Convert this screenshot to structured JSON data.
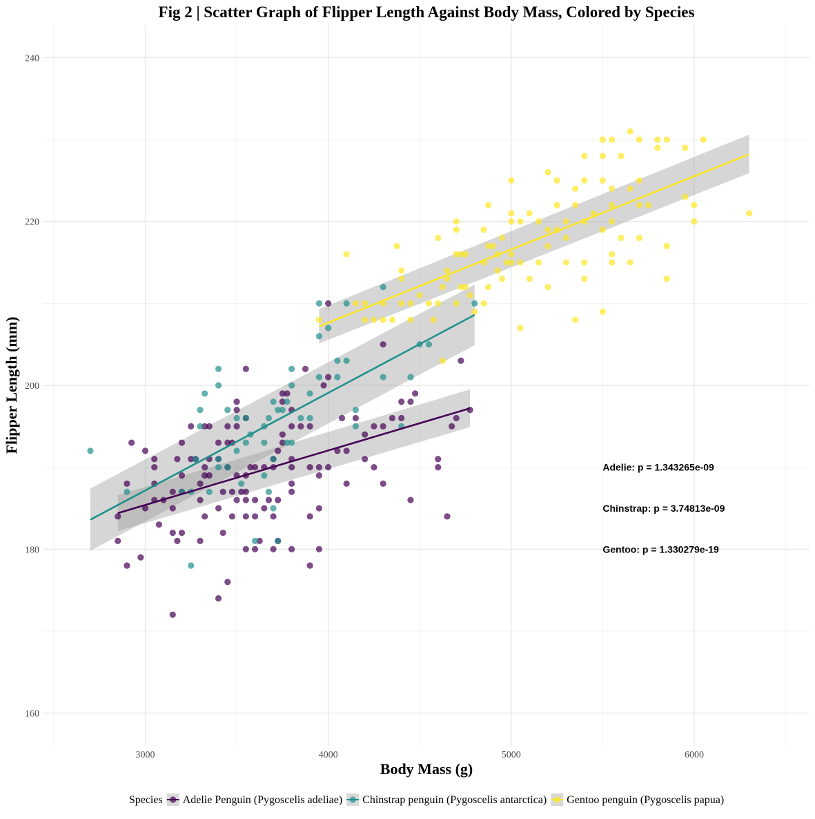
{
  "chart_data": {
    "type": "scatter",
    "title": "Fig 2 | Scatter Graph of Flipper Length Against Body Mass, Colored by Species",
    "xlabel": "Body Mass (g)",
    "ylabel": "Flipper Length (mm)",
    "xlim": [
      2440,
      6630
    ],
    "ylim": [
      156,
      244
    ],
    "x_ticks": [
      3000,
      4000,
      5000,
      6000
    ],
    "y_ticks": [
      160,
      180,
      200,
      220,
      240
    ],
    "grid": true,
    "legend": {
      "title": "Species",
      "position": "bottom"
    },
    "annotations": [
      {
        "text": "Adelie: p = 1.343265e-09",
        "x": 5500,
        "y": 190
      },
      {
        "text": "Chinstrap: p = 3.74813e-09",
        "x": 5500,
        "y": 185
      },
      {
        "text": "Gentoo: p = 1.330279e-19",
        "x": 5500,
        "y": 180
      }
    ],
    "series": [
      {
        "name": "Adelie Penguin (Pygoscelis adeliae)",
        "color": "#440154",
        "fit": {
          "x": [
            2850,
            4775
          ],
          "y": [
            184.4,
            197.2
          ],
          "se_upper": [
            186.6,
            199.5
          ],
          "se_lower": [
            182.2,
            194.9
          ]
        },
        "points": [
          [
            2850,
            181
          ],
          [
            2850,
            184
          ],
          [
            2900,
            178
          ],
          [
            2900,
            188
          ],
          [
            2925,
            193
          ],
          [
            2975,
            179
          ],
          [
            3000,
            185
          ],
          [
            3000,
            192
          ],
          [
            3050,
            186
          ],
          [
            3050,
            188
          ],
          [
            3050,
            190
          ],
          [
            3050,
            191
          ],
          [
            3075,
            183
          ],
          [
            3100,
            186
          ],
          [
            3150,
            172
          ],
          [
            3150,
            182
          ],
          [
            3150,
            185
          ],
          [
            3150,
            187
          ],
          [
            3175,
            181
          ],
          [
            3175,
            191
          ],
          [
            3200,
            182
          ],
          [
            3200,
            187
          ],
          [
            3200,
            189
          ],
          [
            3200,
            193
          ],
          [
            3250,
            191
          ],
          [
            3250,
            195
          ],
          [
            3275,
            191
          ],
          [
            3300,
            181
          ],
          [
            3300,
            186
          ],
          [
            3300,
            188
          ],
          [
            3325,
            184
          ],
          [
            3325,
            189
          ],
          [
            3325,
            190
          ],
          [
            3325,
            195
          ],
          [
            3350,
            189
          ],
          [
            3350,
            191
          ],
          [
            3350,
            195
          ],
          [
            3400,
            174
          ],
          [
            3400,
            185
          ],
          [
            3400,
            191
          ],
          [
            3400,
            193
          ],
          [
            3425,
            182
          ],
          [
            3425,
            187
          ],
          [
            3450,
            176
          ],
          [
            3450,
            190
          ],
          [
            3450,
            193
          ],
          [
            3450,
            195
          ],
          [
            3475,
            184
          ],
          [
            3475,
            187
          ],
          [
            3475,
            193
          ],
          [
            3500,
            186
          ],
          [
            3500,
            189
          ],
          [
            3500,
            195
          ],
          [
            3500,
            197
          ],
          [
            3500,
            198
          ],
          [
            3525,
            187
          ],
          [
            3550,
            180
          ],
          [
            3550,
            184
          ],
          [
            3550,
            186
          ],
          [
            3550,
            187
          ],
          [
            3550,
            189
          ],
          [
            3550,
            196
          ],
          [
            3550,
            202
          ],
          [
            3575,
            190
          ],
          [
            3600,
            180
          ],
          [
            3600,
            184
          ],
          [
            3600,
            186
          ],
          [
            3600,
            190
          ],
          [
            3625,
            181
          ],
          [
            3650,
            185
          ],
          [
            3650,
            190
          ],
          [
            3675,
            186
          ],
          [
            3700,
            180
          ],
          [
            3700,
            184
          ],
          [
            3700,
            190
          ],
          [
            3700,
            191
          ],
          [
            3725,
            181
          ],
          [
            3725,
            186
          ],
          [
            3725,
            192
          ],
          [
            3750,
            193
          ],
          [
            3750,
            194
          ],
          [
            3750,
            198
          ],
          [
            3750,
            199
          ],
          [
            3775,
            199
          ],
          [
            3800,
            180
          ],
          [
            3800,
            187
          ],
          [
            3800,
            188
          ],
          [
            3800,
            190
          ],
          [
            3800,
            191
          ],
          [
            3800,
            195
          ],
          [
            3800,
            197
          ],
          [
            3850,
            195
          ],
          [
            3875,
            202
          ],
          [
            3900,
            178
          ],
          [
            3900,
            184
          ],
          [
            3900,
            190
          ],
          [
            3900,
            195
          ],
          [
            3950,
            180
          ],
          [
            3950,
            185
          ],
          [
            3950,
            189
          ],
          [
            3950,
            190
          ],
          [
            3975,
            200
          ],
          [
            4000,
            190
          ],
          [
            4000,
            201
          ],
          [
            4000,
            210
          ],
          [
            4050,
            192
          ],
          [
            4075,
            196
          ],
          [
            4100,
            188
          ],
          [
            4100,
            192
          ],
          [
            4150,
            196
          ],
          [
            4200,
            191
          ],
          [
            4200,
            194
          ],
          [
            4250,
            190
          ],
          [
            4250,
            195
          ],
          [
            4300,
            188
          ],
          [
            4300,
            195
          ],
          [
            4300,
            205
          ],
          [
            4350,
            196
          ],
          [
            4400,
            196
          ],
          [
            4400,
            198
          ],
          [
            4450,
            186
          ],
          [
            4450,
            198
          ],
          [
            4475,
            199
          ],
          [
            4600,
            190
          ],
          [
            4600,
            191
          ],
          [
            4650,
            184
          ],
          [
            4675,
            195
          ],
          [
            4700,
            196
          ],
          [
            4725,
            203
          ],
          [
            4775,
            197
          ]
        ]
      },
      {
        "name": "Chinstrap penguin (Pygoscelis antarctica)",
        "color": "#21908C",
        "fit": {
          "x": [
            2700,
            4800
          ],
          "y": [
            183.6,
            208.6
          ],
          "se_upper": [
            187.4,
            212.3
          ],
          "se_lower": [
            179.8,
            204.9
          ]
        },
        "points": [
          [
            2700,
            192
          ],
          [
            2900,
            187
          ],
          [
            3200,
            187
          ],
          [
            3250,
            178
          ],
          [
            3250,
            187
          ],
          [
            3275,
            191
          ],
          [
            3300,
            195
          ],
          [
            3300,
            197
          ],
          [
            3325,
            199
          ],
          [
            3350,
            187
          ],
          [
            3400,
            190
          ],
          [
            3400,
            191
          ],
          [
            3400,
            200
          ],
          [
            3400,
            202
          ],
          [
            3450,
            190
          ],
          [
            3450,
            197
          ],
          [
            3500,
            192
          ],
          [
            3500,
            196
          ],
          [
            3525,
            188
          ],
          [
            3550,
            193
          ],
          [
            3550,
            196
          ],
          [
            3575,
            194
          ],
          [
            3600,
            181
          ],
          [
            3650,
            189
          ],
          [
            3650,
            193
          ],
          [
            3650,
            195
          ],
          [
            3675,
            187
          ],
          [
            3675,
            196
          ],
          [
            3700,
            185
          ],
          [
            3700,
            191
          ],
          [
            3700,
            198
          ],
          [
            3725,
            181
          ],
          [
            3725,
            197
          ],
          [
            3750,
            197
          ],
          [
            3775,
            193
          ],
          [
            3775,
            198
          ],
          [
            3800,
            193
          ],
          [
            3800,
            200
          ],
          [
            3800,
            202
          ],
          [
            3850,
            196
          ],
          [
            3900,
            196
          ],
          [
            3900,
            199
          ],
          [
            3950,
            201
          ],
          [
            3950,
            206
          ],
          [
            3950,
            210
          ],
          [
            4000,
            207
          ],
          [
            4050,
            201
          ],
          [
            4050,
            203
          ],
          [
            4100,
            203
          ],
          [
            4100,
            210
          ],
          [
            4150,
            195
          ],
          [
            4150,
            197
          ],
          [
            4300,
            201
          ],
          [
            4300,
            212
          ],
          [
            4400,
            195
          ],
          [
            4450,
            201
          ],
          [
            4500,
            205
          ],
          [
            4550,
            205
          ],
          [
            4800,
            210
          ]
        ]
      },
      {
        "name": "Gentoo penguin (Pygoscelis papua)",
        "color": "#FDE725",
        "fit": {
          "x": [
            3950,
            6300
          ],
          "y": [
            207.2,
            228.2
          ],
          "se_upper": [
            209.3,
            230.6
          ],
          "se_lower": [
            205.1,
            225.9
          ]
        },
        "points": [
          [
            3950,
            208
          ],
          [
            4100,
            216
          ],
          [
            4150,
            210
          ],
          [
            4200,
            208
          ],
          [
            4200,
            210
          ],
          [
            4250,
            208
          ],
          [
            4300,
            208
          ],
          [
            4300,
            210
          ],
          [
            4350,
            208
          ],
          [
            4375,
            217
          ],
          [
            4400,
            210
          ],
          [
            4400,
            213
          ],
          [
            4400,
            214
          ],
          [
            4450,
            208
          ],
          [
            4450,
            210
          ],
          [
            4500,
            211
          ],
          [
            4550,
            210
          ],
          [
            4575,
            208
          ],
          [
            4600,
            210
          ],
          [
            4600,
            218
          ],
          [
            4625,
            203
          ],
          [
            4625,
            212
          ],
          [
            4650,
            213
          ],
          [
            4650,
            214
          ],
          [
            4700,
            216
          ],
          [
            4700,
            219
          ],
          [
            4700,
            220
          ],
          [
            4700,
            210
          ],
          [
            4725,
            216
          ],
          [
            4725,
            212
          ],
          [
            4750,
            212
          ],
          [
            4750,
            216
          ],
          [
            4775,
            211
          ],
          [
            4800,
            209
          ],
          [
            4850,
            210
          ],
          [
            4850,
            215
          ],
          [
            4850,
            219
          ],
          [
            4875,
            212
          ],
          [
            4875,
            217
          ],
          [
            4875,
            222
          ],
          [
            4900,
            217
          ],
          [
            4925,
            214
          ],
          [
            4925,
            216
          ],
          [
            4950,
            213
          ],
          [
            4950,
            218
          ],
          [
            4975,
            215
          ],
          [
            5000,
            215
          ],
          [
            5000,
            216
          ],
          [
            5000,
            220
          ],
          [
            5000,
            221
          ],
          [
            5000,
            225
          ],
          [
            5050,
            207
          ],
          [
            5050,
            215
          ],
          [
            5050,
            220
          ],
          [
            5100,
            213
          ],
          [
            5100,
            221
          ],
          [
            5150,
            215
          ],
          [
            5150,
            220
          ],
          [
            5200,
            212
          ],
          [
            5200,
            217
          ],
          [
            5200,
            219
          ],
          [
            5200,
            226
          ],
          [
            5250,
            219
          ],
          [
            5250,
            222
          ],
          [
            5250,
            225
          ],
          [
            5300,
            215
          ],
          [
            5300,
            218
          ],
          [
            5300,
            220
          ],
          [
            5350,
            208
          ],
          [
            5350,
            222
          ],
          [
            5350,
            224
          ],
          [
            5400,
            213
          ],
          [
            5400,
            215
          ],
          [
            5400,
            220
          ],
          [
            5400,
            225
          ],
          [
            5400,
            228
          ],
          [
            5450,
            221
          ],
          [
            5500,
            209
          ],
          [
            5500,
            219
          ],
          [
            5500,
            225
          ],
          [
            5500,
            228
          ],
          [
            5500,
            230
          ],
          [
            5550,
            215
          ],
          [
            5550,
            216
          ],
          [
            5550,
            220
          ],
          [
            5550,
            222
          ],
          [
            5550,
            224
          ],
          [
            5550,
            230
          ],
          [
            5600,
            218
          ],
          [
            5600,
            228
          ],
          [
            5650,
            215
          ],
          [
            5650,
            224
          ],
          [
            5650,
            231
          ],
          [
            5700,
            218
          ],
          [
            5700,
            222
          ],
          [
            5700,
            225
          ],
          [
            5700,
            230
          ],
          [
            5750,
            222
          ],
          [
            5800,
            229
          ],
          [
            5800,
            230
          ],
          [
            5850,
            213
          ],
          [
            5850,
            217
          ],
          [
            5850,
            230
          ],
          [
            5950,
            223
          ],
          [
            5950,
            229
          ],
          [
            6000,
            220
          ],
          [
            6000,
            222
          ],
          [
            6050,
            230
          ],
          [
            6300,
            221
          ]
        ]
      }
    ]
  }
}
